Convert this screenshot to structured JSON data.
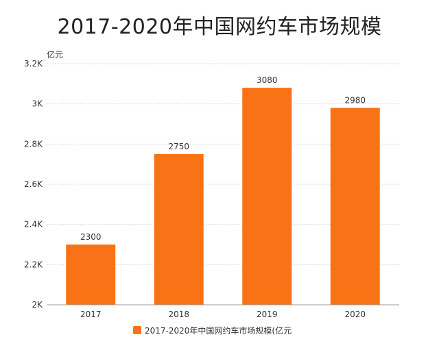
{
  "chart_data": {
    "type": "bar",
    "title": "2017-2020年中国网约车市场规模",
    "unit_label": "亿元",
    "categories": [
      "2017",
      "2018",
      "2019",
      "2020"
    ],
    "series": [
      {
        "name": "2017-2020年中国网约车市场规模(亿元",
        "values": [
          2300,
          2750,
          3080,
          2980
        ],
        "color": "#f97316"
      }
    ],
    "value_labels": [
      "2300",
      "2750",
      "3080",
      "2980"
    ],
    "ylim": [
      2000,
      3200
    ],
    "yticks": [
      2000,
      2200,
      2400,
      2600,
      2800,
      3000,
      3200
    ],
    "ytick_labels": [
      "2K",
      "2.2K",
      "2.4K",
      "2.6K",
      "2.8K",
      "3K",
      "3.2K"
    ],
    "grid": true,
    "legend_position": "bottom"
  }
}
